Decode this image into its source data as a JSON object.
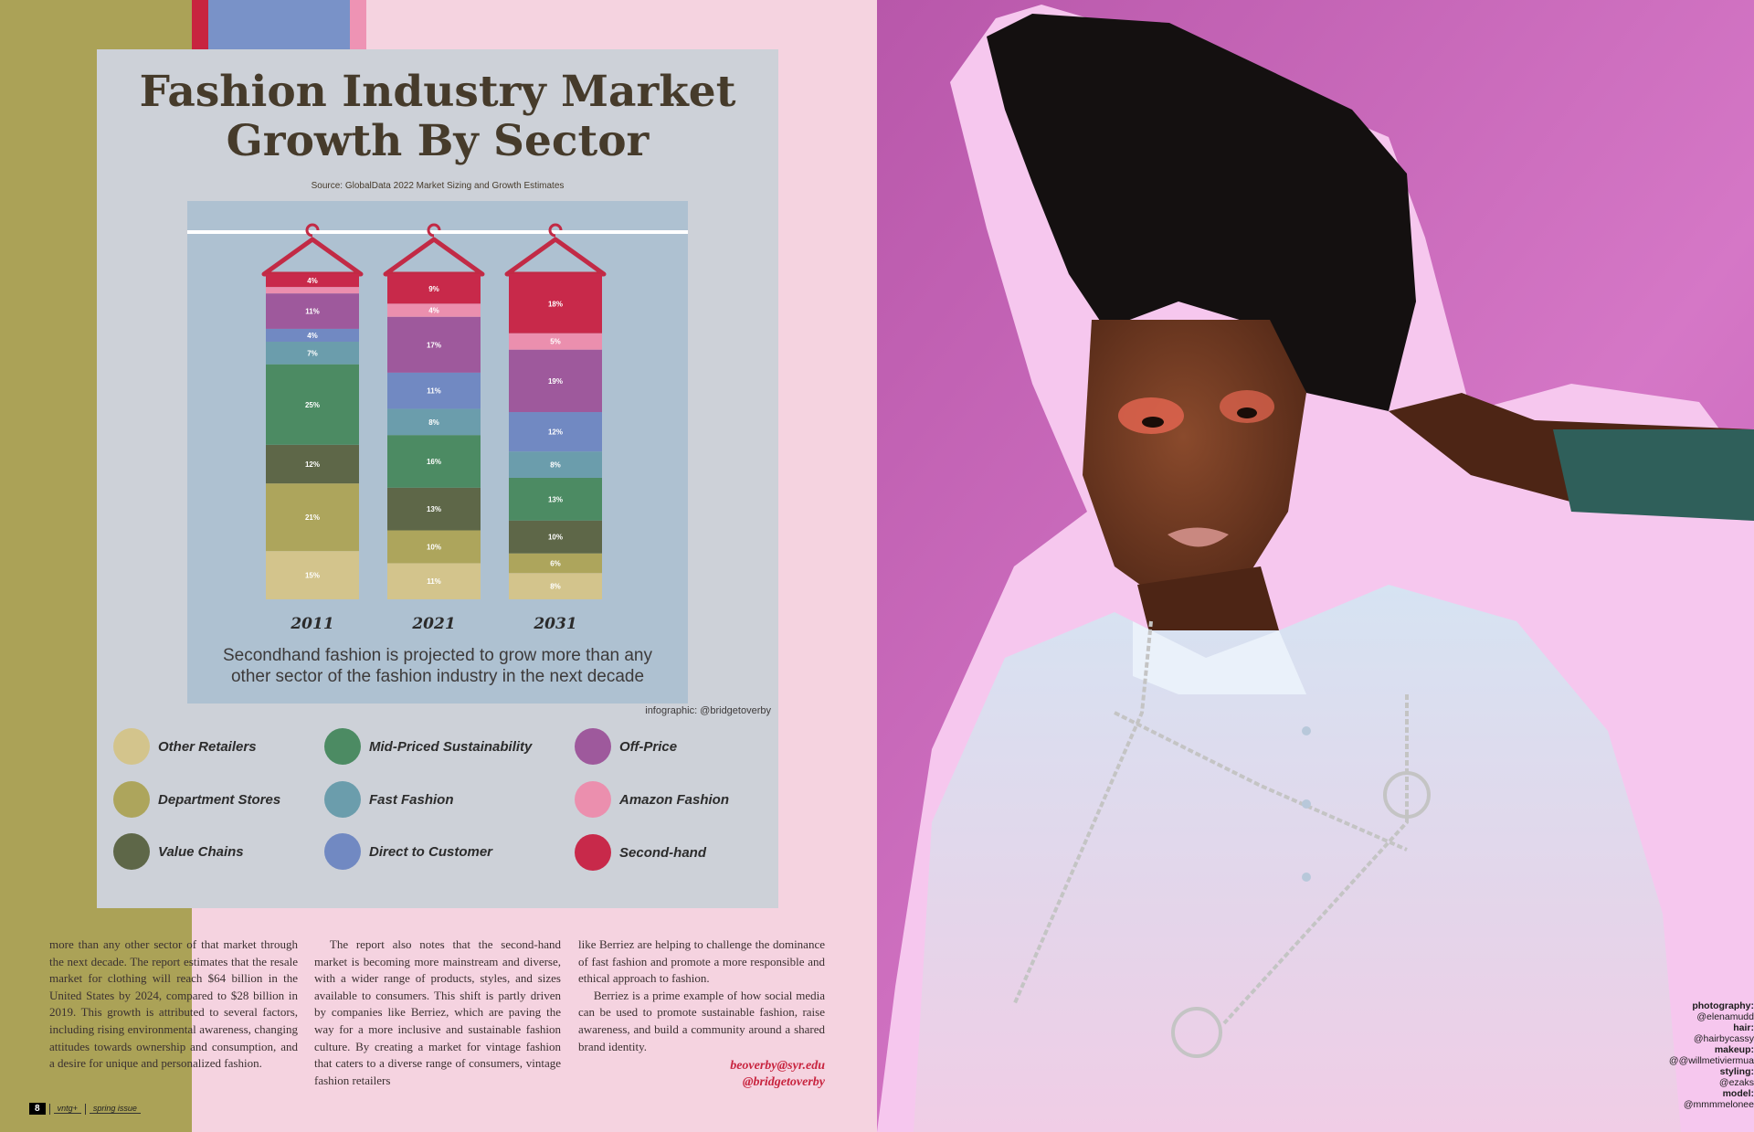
{
  "infographic": {
    "title_line1": "Fashion Industry Market",
    "title_line2": "Growth By Sector",
    "source": "Source: GlobalData 2022 Market Sizing and Growth Estimates",
    "caption_line1": "Secondhand fashion is projected to grow more than any",
    "caption_line2": "other sector of the fashion industry in the next decade",
    "credit": "infographic: @bridgetoverby"
  },
  "chart_data": {
    "type": "bar",
    "stacked": true,
    "categories": [
      "2011",
      "2021",
      "2031"
    ],
    "series": [
      {
        "name": "Other Retailers",
        "color": "#d3c48c",
        "values": [
          15,
          11,
          8
        ]
      },
      {
        "name": "Department Stores",
        "color": "#ada55c",
        "values": [
          21,
          10,
          6
        ]
      },
      {
        "name": "Value Chains",
        "color": "#5e6748",
        "values": [
          12,
          13,
          10
        ]
      },
      {
        "name": "Mid-Priced Sustainability",
        "color": "#4c8b63",
        "values": [
          25,
          16,
          13
        ]
      },
      {
        "name": "Fast Fashion",
        "color": "#6b9dac",
        "values": [
          7,
          8,
          8
        ]
      },
      {
        "name": "Direct to Customer",
        "color": "#7189c2",
        "values": [
          4,
          11,
          12
        ]
      },
      {
        "name": "Off-Price",
        "color": "#9e599c",
        "values": [
          11,
          17,
          19
        ]
      },
      {
        "name": "Amazon Fashion",
        "color": "#eb8fae",
        "values": [
          2,
          4,
          5
        ]
      },
      {
        "name": "Second-hand",
        "color": "#c8294a",
        "values": [
          4,
          9,
          18
        ]
      }
    ],
    "value_labels": {
      "Other Retailers": [
        "15%",
        "11%",
        "8%"
      ],
      "Department Stores": [
        "21%",
        "10%",
        "6%"
      ],
      "Value Chains": [
        "12%",
        "13%",
        "10%"
      ],
      "Mid-Priced Sustainability": [
        "25%",
        "16%",
        "13%"
      ],
      "Fast Fashion": [
        "7%",
        "8%",
        "8%"
      ],
      "Direct to Customer": [
        "4%",
        "11%",
        "12%"
      ],
      "Off-Price": [
        "11%",
        "17%",
        "19%"
      ],
      "Amazon Fashion": [
        "",
        "4%",
        "5%"
      ],
      "Second-hand": [
        "4%",
        "9%",
        "18%"
      ]
    },
    "legend_placement": "bottom",
    "hanger_color": "#c22a45",
    "grid": false
  },
  "legend": [
    {
      "label": "Other Retailers",
      "color": "#d3c48c"
    },
    {
      "label": "Department Stores",
      "color": "#ada55c"
    },
    {
      "label": "Value Chains",
      "color": "#5e6748"
    },
    {
      "label": "Mid-Priced Sustainability",
      "color": "#4c8b63"
    },
    {
      "label": "Fast Fashion",
      "color": "#6b9dac"
    },
    {
      "label": "Direct to Customer",
      "color": "#7189c2"
    },
    {
      "label": "Off-Price",
      "color": "#9e599c"
    },
    {
      "label": "Amazon Fashion",
      "color": "#eb8fae"
    },
    {
      "label": "Second-hand",
      "color": "#c8294a"
    }
  ],
  "article": {
    "col1_p1": "more than any other sector of that market through the next decade. The report estimates that the resale market for clothing will reach $64 billion in the United States by 2024, compared to $28 billion in 2019. This growth is attributed to several factors, including rising environmental awareness, changing attitudes towards ownership and consumption, and a desire for unique and personalized fashion.",
    "col2_p1": "The report also notes that the second-hand market is becoming more mainstream and diverse, with a wider range of products, styles, and sizes available to consumers. This shift is partly driven by companies like Berriez, which are paving the way for a more inclusive and sustainable fashion culture. By creating a market for vintage fashion that caters to a diverse range of consumers, vintage fashion retailers",
    "col3_p1": "like Berriez are helping to challenge the dominance of fast fashion and promote a more responsible and ethical approach to fashion.",
    "col3_p2": "Berriez is a prime example of how social media can be used to promote sustainable fashion, raise awareness, and build a community around a shared brand identity.",
    "byline_email": "beoverby@syr.edu",
    "byline_handle": "@bridgetoverby"
  },
  "footer": {
    "page_number": "8",
    "magazine": "vntg+",
    "issue": "spring issue"
  },
  "photo_credits": [
    {
      "role": "photography:",
      "handle": "@elenamudd"
    },
    {
      "role": "hair:",
      "handle": "@hairbycassy"
    },
    {
      "role": "makeup:",
      "handle": "@@willmetiviermua"
    },
    {
      "role": "styling:",
      "handle": "@ezaks"
    },
    {
      "role": "model:",
      "handle": "@mmmmelonee"
    }
  ],
  "colors": {
    "olive": "#aba257",
    "page_pink": "#f5d3e0",
    "card_grey": "#cdd1d8",
    "chart_blue": "#aec1d1",
    "photo_magenta": "#c668b8",
    "accent_red": "#c8243f"
  }
}
